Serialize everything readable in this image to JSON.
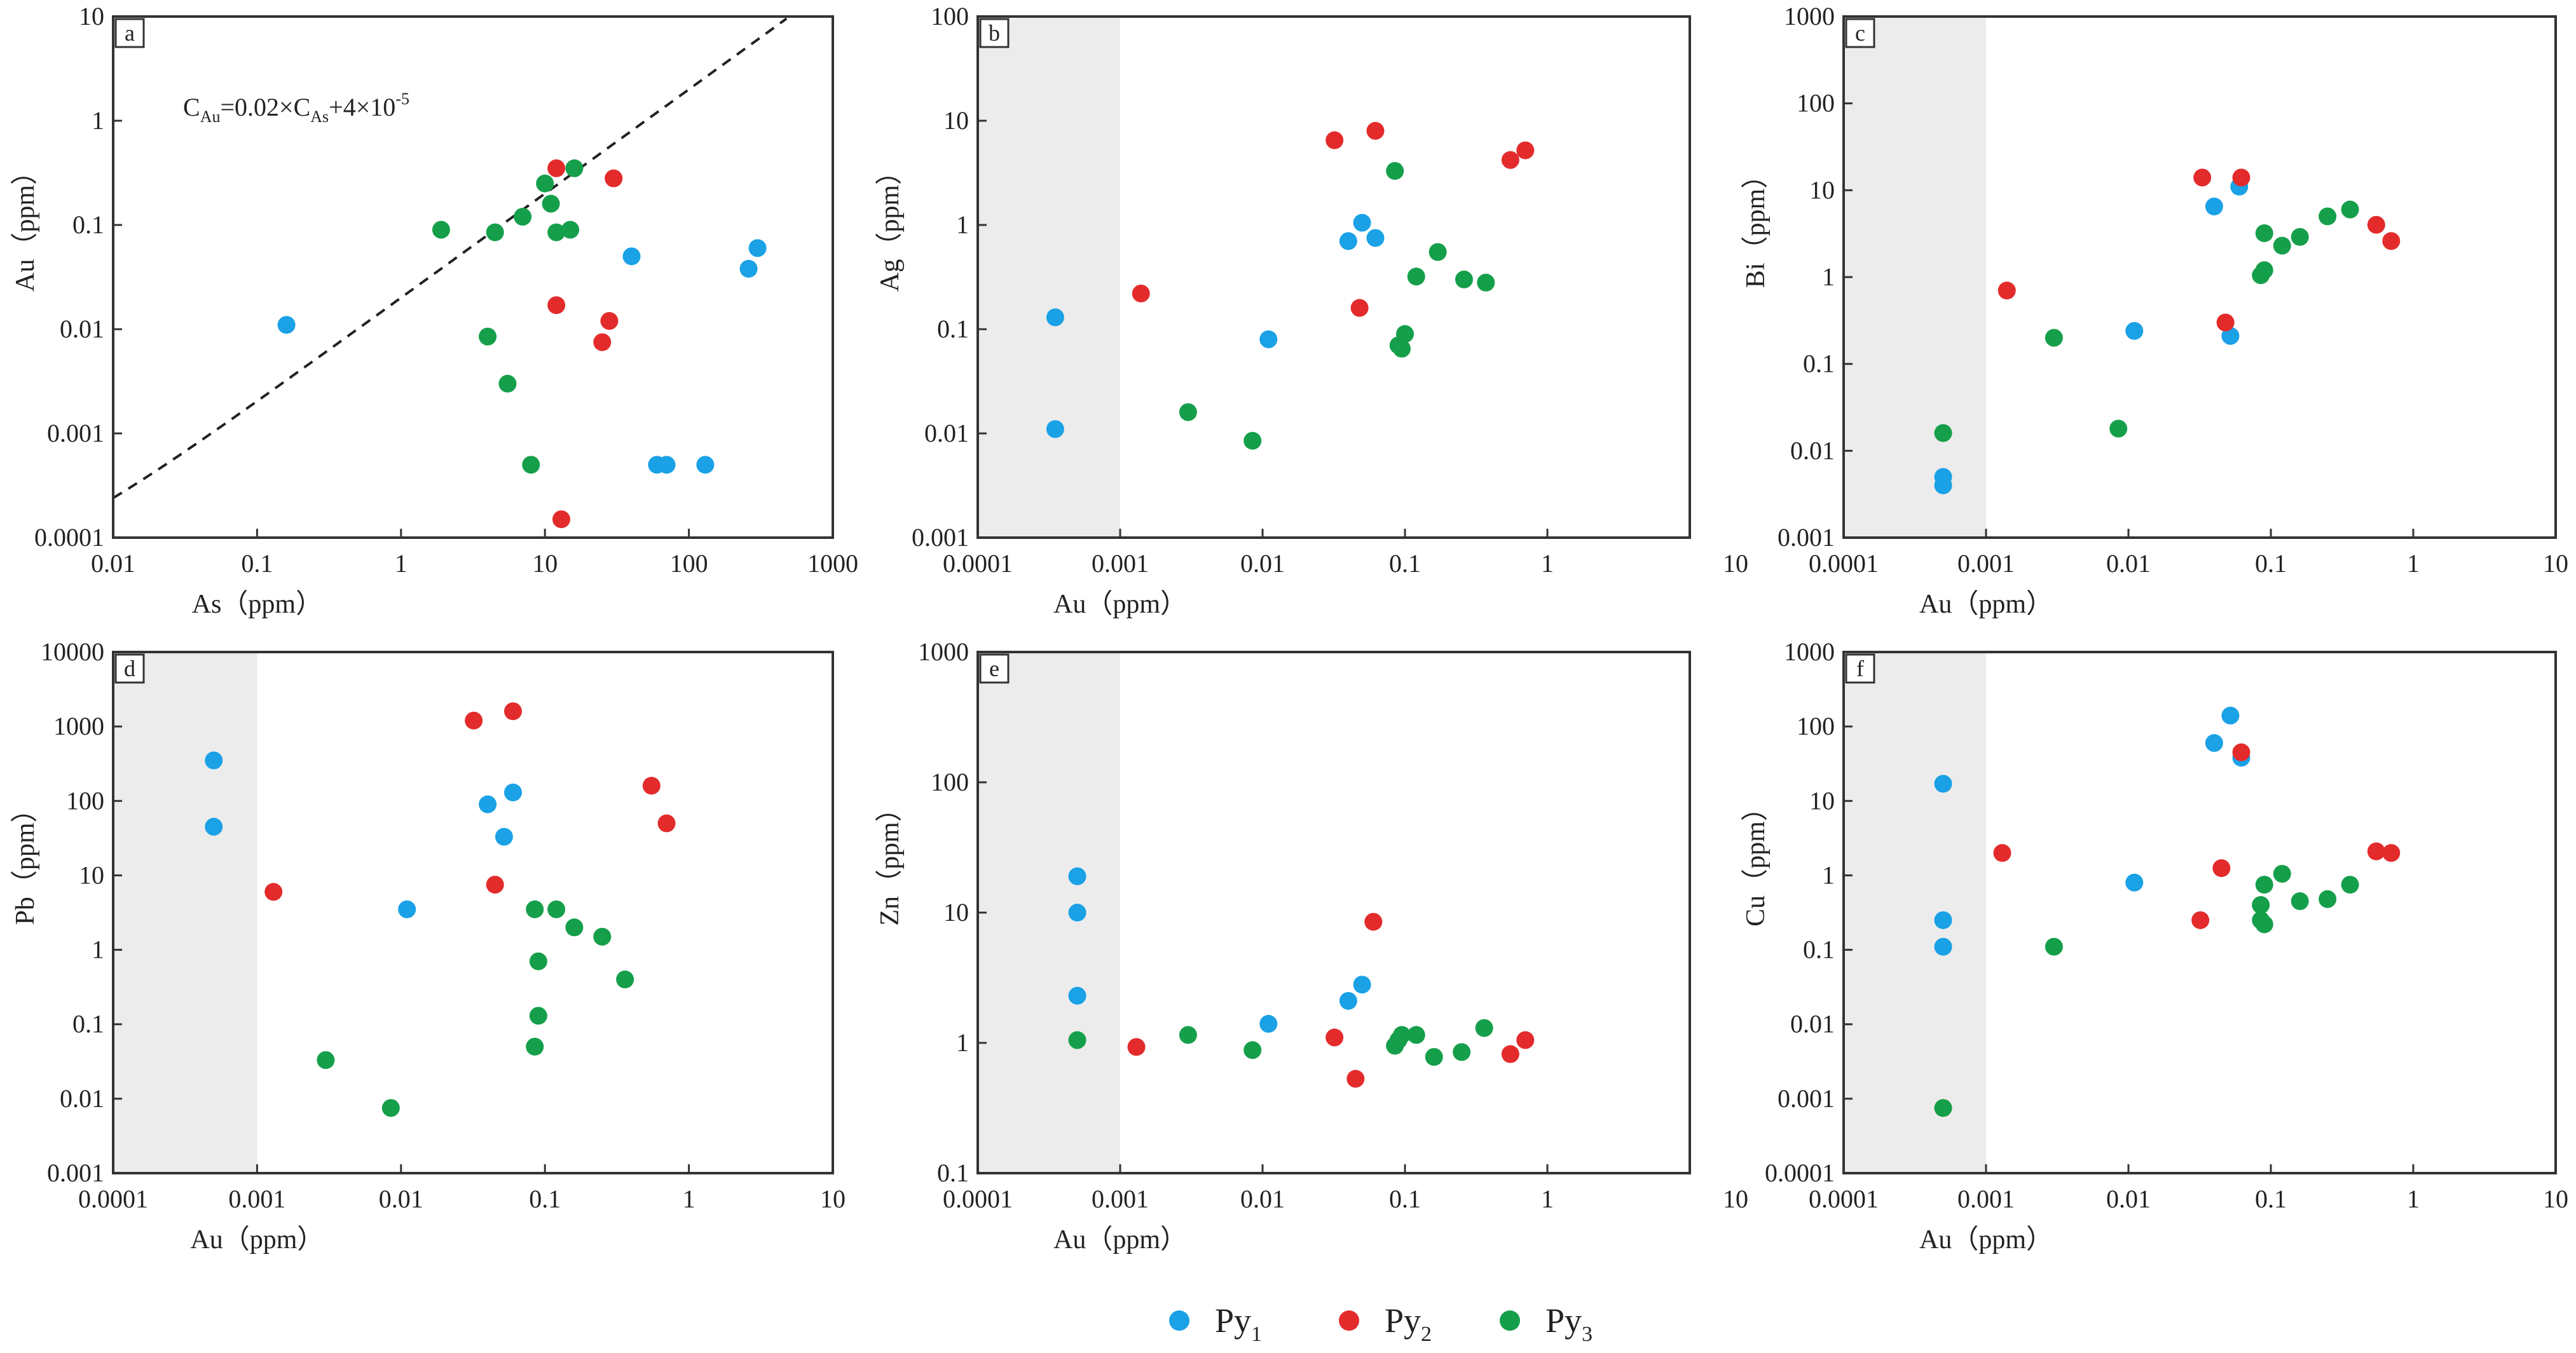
{
  "colors": {
    "Py1": "#1aa1e6",
    "Py2": "#e32b2b",
    "Py3": "#159f4a",
    "shade": "#ececec"
  },
  "legend": [
    {
      "key": "Py1",
      "base": "Py",
      "sub": "1"
    },
    {
      "key": "Py2",
      "base": "Py",
      "sub": "2"
    },
    {
      "key": "Py3",
      "base": "Py",
      "sub": "3"
    }
  ],
  "chart_data": [
    {
      "id": "a",
      "type": "scatter",
      "title": "a",
      "xlabel": "As（ppm）",
      "ylabel": "Au（ppm）",
      "xscale": "log",
      "yscale": "log",
      "xlim": [
        0.01,
        1000
      ],
      "ylim": [
        0.0001,
        10
      ],
      "xticks": [
        "0.01",
        "0.1",
        "1",
        "10",
        "100",
        "1000"
      ],
      "yticks": [
        "0.0001",
        "0.001",
        "0.01",
        "0.1",
        "1",
        "10"
      ],
      "shade_below_x": null,
      "curve": {
        "label": "C_Au=0.02×C_As+4×10^-5",
        "a": 0.02,
        "b": 4e-05,
        "style": "dashed"
      },
      "series": [
        {
          "name": "Py1",
          "points": [
            [
              0.16,
              0.011
            ],
            [
              40,
              0.05
            ],
            [
              60,
              0.0005
            ],
            [
              70,
              0.0005
            ],
            [
              130,
              0.0005
            ],
            [
              260,
              0.038
            ],
            [
              300,
              0.06
            ]
          ]
        },
        {
          "name": "Py2",
          "points": [
            [
              12,
              0.35
            ],
            [
              30,
              0.28
            ],
            [
              12,
              0.017
            ],
            [
              25,
              0.0075
            ],
            [
              28,
              0.012
            ],
            [
              13,
              0.00015
            ]
          ]
        },
        {
          "name": "Py3",
          "points": [
            [
              1.9,
              0.09
            ],
            [
              4.5,
              0.085
            ],
            [
              7,
              0.12
            ],
            [
              10,
              0.25
            ],
            [
              11,
              0.16
            ],
            [
              12,
              0.085
            ],
            [
              15,
              0.09
            ],
            [
              16,
              0.35
            ],
            [
              4,
              0.0085
            ],
            [
              5.5,
              0.003
            ],
            [
              8,
              0.0005
            ]
          ]
        }
      ]
    },
    {
      "id": "b",
      "type": "scatter",
      "title": "b",
      "xlabel": "Au（ppm）",
      "ylabel": "Ag（ppm）",
      "xscale": "log",
      "yscale": "log",
      "xlim": [
        0.0001,
        10
      ],
      "ylim": [
        0.001,
        100
      ],
      "xticks": [
        "0.0001",
        "0.001",
        "0.01",
        "0.1",
        "1"
      ],
      "yticks": [
        "0.001",
        "0.01",
        "0.1",
        "1",
        "10",
        "100"
      ],
      "shade_below_x": 0.001,
      "series": [
        {
          "name": "Py1",
          "points": [
            [
              0.00035,
              0.13
            ],
            [
              0.00035,
              0.011
            ],
            [
              0.011,
              0.08
            ],
            [
              0.04,
              0.7
            ],
            [
              0.05,
              1.05
            ],
            [
              0.062,
              0.75
            ]
          ]
        },
        {
          "name": "Py2",
          "points": [
            [
              0.0014,
              0.22
            ],
            [
              0.032,
              6.5
            ],
            [
              0.062,
              8
            ],
            [
              0.048,
              0.16
            ],
            [
              0.55,
              4.2
            ],
            [
              0.7,
              5.2
            ]
          ]
        },
        {
          "name": "Py3",
          "points": [
            [
              0.003,
              0.016
            ],
            [
              0.0085,
              0.0085
            ],
            [
              0.085,
              3.3
            ],
            [
              0.09,
              0.07
            ],
            [
              0.095,
              0.065
            ],
            [
              0.1,
              0.09
            ],
            [
              0.12,
              0.32
            ],
            [
              0.17,
              0.55
            ],
            [
              0.26,
              0.3
            ],
            [
              0.37,
              0.28
            ]
          ]
        }
      ]
    },
    {
      "id": "c",
      "type": "scatter",
      "title": "c",
      "xlabel": "Au（ppm）",
      "ylabel": "Bi（ppm）",
      "xscale": "log",
      "yscale": "log",
      "xlim": [
        0.0001,
        10
      ],
      "ylim": [
        0.001,
        1000
      ],
      "xticks": [
        "10",
        "0.0001",
        "0.001",
        "0.01",
        "0.1",
        "1",
        "10"
      ],
      "yticks": [
        "0.001",
        "0.01",
        "0.1",
        "1",
        "10",
        "100",
        "1000"
      ],
      "shade_below_x": 0.001,
      "series": [
        {
          "name": "Py1",
          "points": [
            [
              0.0005,
              0.005
            ],
            [
              0.0005,
              0.004
            ],
            [
              0.011,
              0.24
            ],
            [
              0.04,
              6.5
            ],
            [
              0.06,
              11
            ],
            [
              0.052,
              0.21
            ]
          ]
        },
        {
          "name": "Py2",
          "points": [
            [
              0.0014,
              0.7
            ],
            [
              0.033,
              14
            ],
            [
              0.062,
              14
            ],
            [
              0.048,
              0.3
            ],
            [
              0.55,
              4
            ],
            [
              0.7,
              2.6
            ]
          ]
        },
        {
          "name": "Py3",
          "points": [
            [
              0.0005,
              0.016
            ],
            [
              0.003,
              0.2
            ],
            [
              0.0085,
              0.018
            ],
            [
              0.085,
              1.05
            ],
            [
              0.09,
              1.2
            ],
            [
              0.09,
              3.2
            ],
            [
              0.12,
              2.3
            ],
            [
              0.16,
              2.9
            ],
            [
              0.25,
              5
            ],
            [
              0.36,
              6
            ]
          ]
        }
      ]
    },
    {
      "id": "d",
      "type": "scatter",
      "title": "d",
      "xlabel": "Au（ppm）",
      "ylabel": "Pb（ppm）",
      "xscale": "log",
      "yscale": "log",
      "xlim": [
        0.0001,
        10
      ],
      "ylim": [
        0.001,
        10000
      ],
      "xticks": [
        "0.0001",
        "0.001",
        "0.01",
        "0.1",
        "1",
        "10"
      ],
      "yticks": [
        "0.001",
        "0.01",
        "0.1",
        "1",
        "10",
        "100",
        "1000",
        "10000"
      ],
      "shade_below_x": 0.001,
      "series": [
        {
          "name": "Py1",
          "points": [
            [
              0.0005,
              350
            ],
            [
              0.0005,
              45
            ],
            [
              0.011,
              3.5
            ],
            [
              0.04,
              90
            ],
            [
              0.06,
              130
            ],
            [
              0.052,
              33
            ]
          ]
        },
        {
          "name": "Py2",
          "points": [
            [
              0.0013,
              6
            ],
            [
              0.032,
              1200
            ],
            [
              0.06,
              1600
            ],
            [
              0.045,
              7.5
            ],
            [
              0.55,
              160
            ],
            [
              0.7,
              50
            ]
          ]
        },
        {
          "name": "Py3",
          "points": [
            [
              0.003,
              0.033
            ],
            [
              0.0085,
              0.0075
            ],
            [
              0.085,
              3.5
            ],
            [
              0.09,
              0.7
            ],
            [
              0.09,
              0.13
            ],
            [
              0.085,
              0.05
            ],
            [
              0.12,
              3.5
            ],
            [
              0.16,
              2
            ],
            [
              0.25,
              1.5
            ],
            [
              0.36,
              0.4
            ]
          ]
        }
      ]
    },
    {
      "id": "e",
      "type": "scatter",
      "title": "e",
      "xlabel": "Au（ppm）",
      "ylabel": "Zn（ppm）",
      "xscale": "log",
      "yscale": "log",
      "xlim": [
        0.0001,
        10
      ],
      "ylim": [
        0.1,
        1000
      ],
      "xticks": [
        "0.0001",
        "0.001",
        "0.01",
        "0.1",
        "1"
      ],
      "yticks": [
        "0.1",
        "1",
        "10",
        "100",
        "1000"
      ],
      "shade_below_x": 0.001,
      "series": [
        {
          "name": "Py1",
          "points": [
            [
              0.0005,
              19
            ],
            [
              0.0005,
              10
            ],
            [
              0.0005,
              2.3
            ],
            [
              0.011,
              1.4
            ],
            [
              0.04,
              2.1
            ],
            [
              0.05,
              2.8
            ]
          ]
        },
        {
          "name": "Py2",
          "points": [
            [
              0.0013,
              0.93
            ],
            [
              0.032,
              1.1
            ],
            [
              0.045,
              0.53
            ],
            [
              0.06,
              8.5
            ],
            [
              0.55,
              0.82
            ],
            [
              0.7,
              1.05
            ]
          ]
        },
        {
          "name": "Py3",
          "points": [
            [
              0.0005,
              1.05
            ],
            [
              0.003,
              1.15
            ],
            [
              0.0085,
              0.88
            ],
            [
              0.085,
              0.95
            ],
            [
              0.09,
              1.05
            ],
            [
              0.095,
              1.15
            ],
            [
              0.12,
              1.15
            ],
            [
              0.16,
              0.78
            ],
            [
              0.25,
              0.85
            ],
            [
              0.36,
              1.3
            ]
          ]
        }
      ]
    },
    {
      "id": "f",
      "type": "scatter",
      "title": "f",
      "xlabel": "Au（ppm）",
      "ylabel": "Cu（ppm）",
      "xscale": "log",
      "yscale": "log",
      "xlim": [
        0.0001,
        10
      ],
      "ylim": [
        0.0001,
        1000
      ],
      "xticks": [
        "10",
        "0.0001",
        "0.001",
        "0.01",
        "0.1",
        "1",
        "10"
      ],
      "yticks": [
        "0.0001",
        "0.001",
        "0.01",
        "0.1",
        "1",
        "10",
        "100",
        "1000"
      ],
      "shade_below_x": 0.001,
      "series": [
        {
          "name": "Py1",
          "points": [
            [
              0.0005,
              17
            ],
            [
              0.0005,
              0.25
            ],
            [
              0.0005,
              0.11
            ],
            [
              0.011,
              0.8
            ],
            [
              0.04,
              60
            ],
            [
              0.052,
              140
            ],
            [
              0.062,
              38
            ]
          ]
        },
        {
          "name": "Py2",
          "points": [
            [
              0.0013,
              2
            ],
            [
              0.032,
              0.25
            ],
            [
              0.045,
              1.25
            ],
            [
              0.062,
              45
            ],
            [
              0.55,
              2.1
            ],
            [
              0.7,
              2
            ]
          ]
        },
        {
          "name": "Py3",
          "points": [
            [
              0.0005,
              0.00075
            ],
            [
              0.003,
              0.11
            ],
            [
              0.085,
              0.4
            ],
            [
              0.085,
              0.25
            ],
            [
              0.09,
              0.22
            ],
            [
              0.09,
              0.75
            ],
            [
              0.12,
              1.05
            ],
            [
              0.16,
              0.45
            ],
            [
              0.25,
              0.48
            ],
            [
              0.36,
              0.75
            ]
          ]
        }
      ]
    }
  ]
}
